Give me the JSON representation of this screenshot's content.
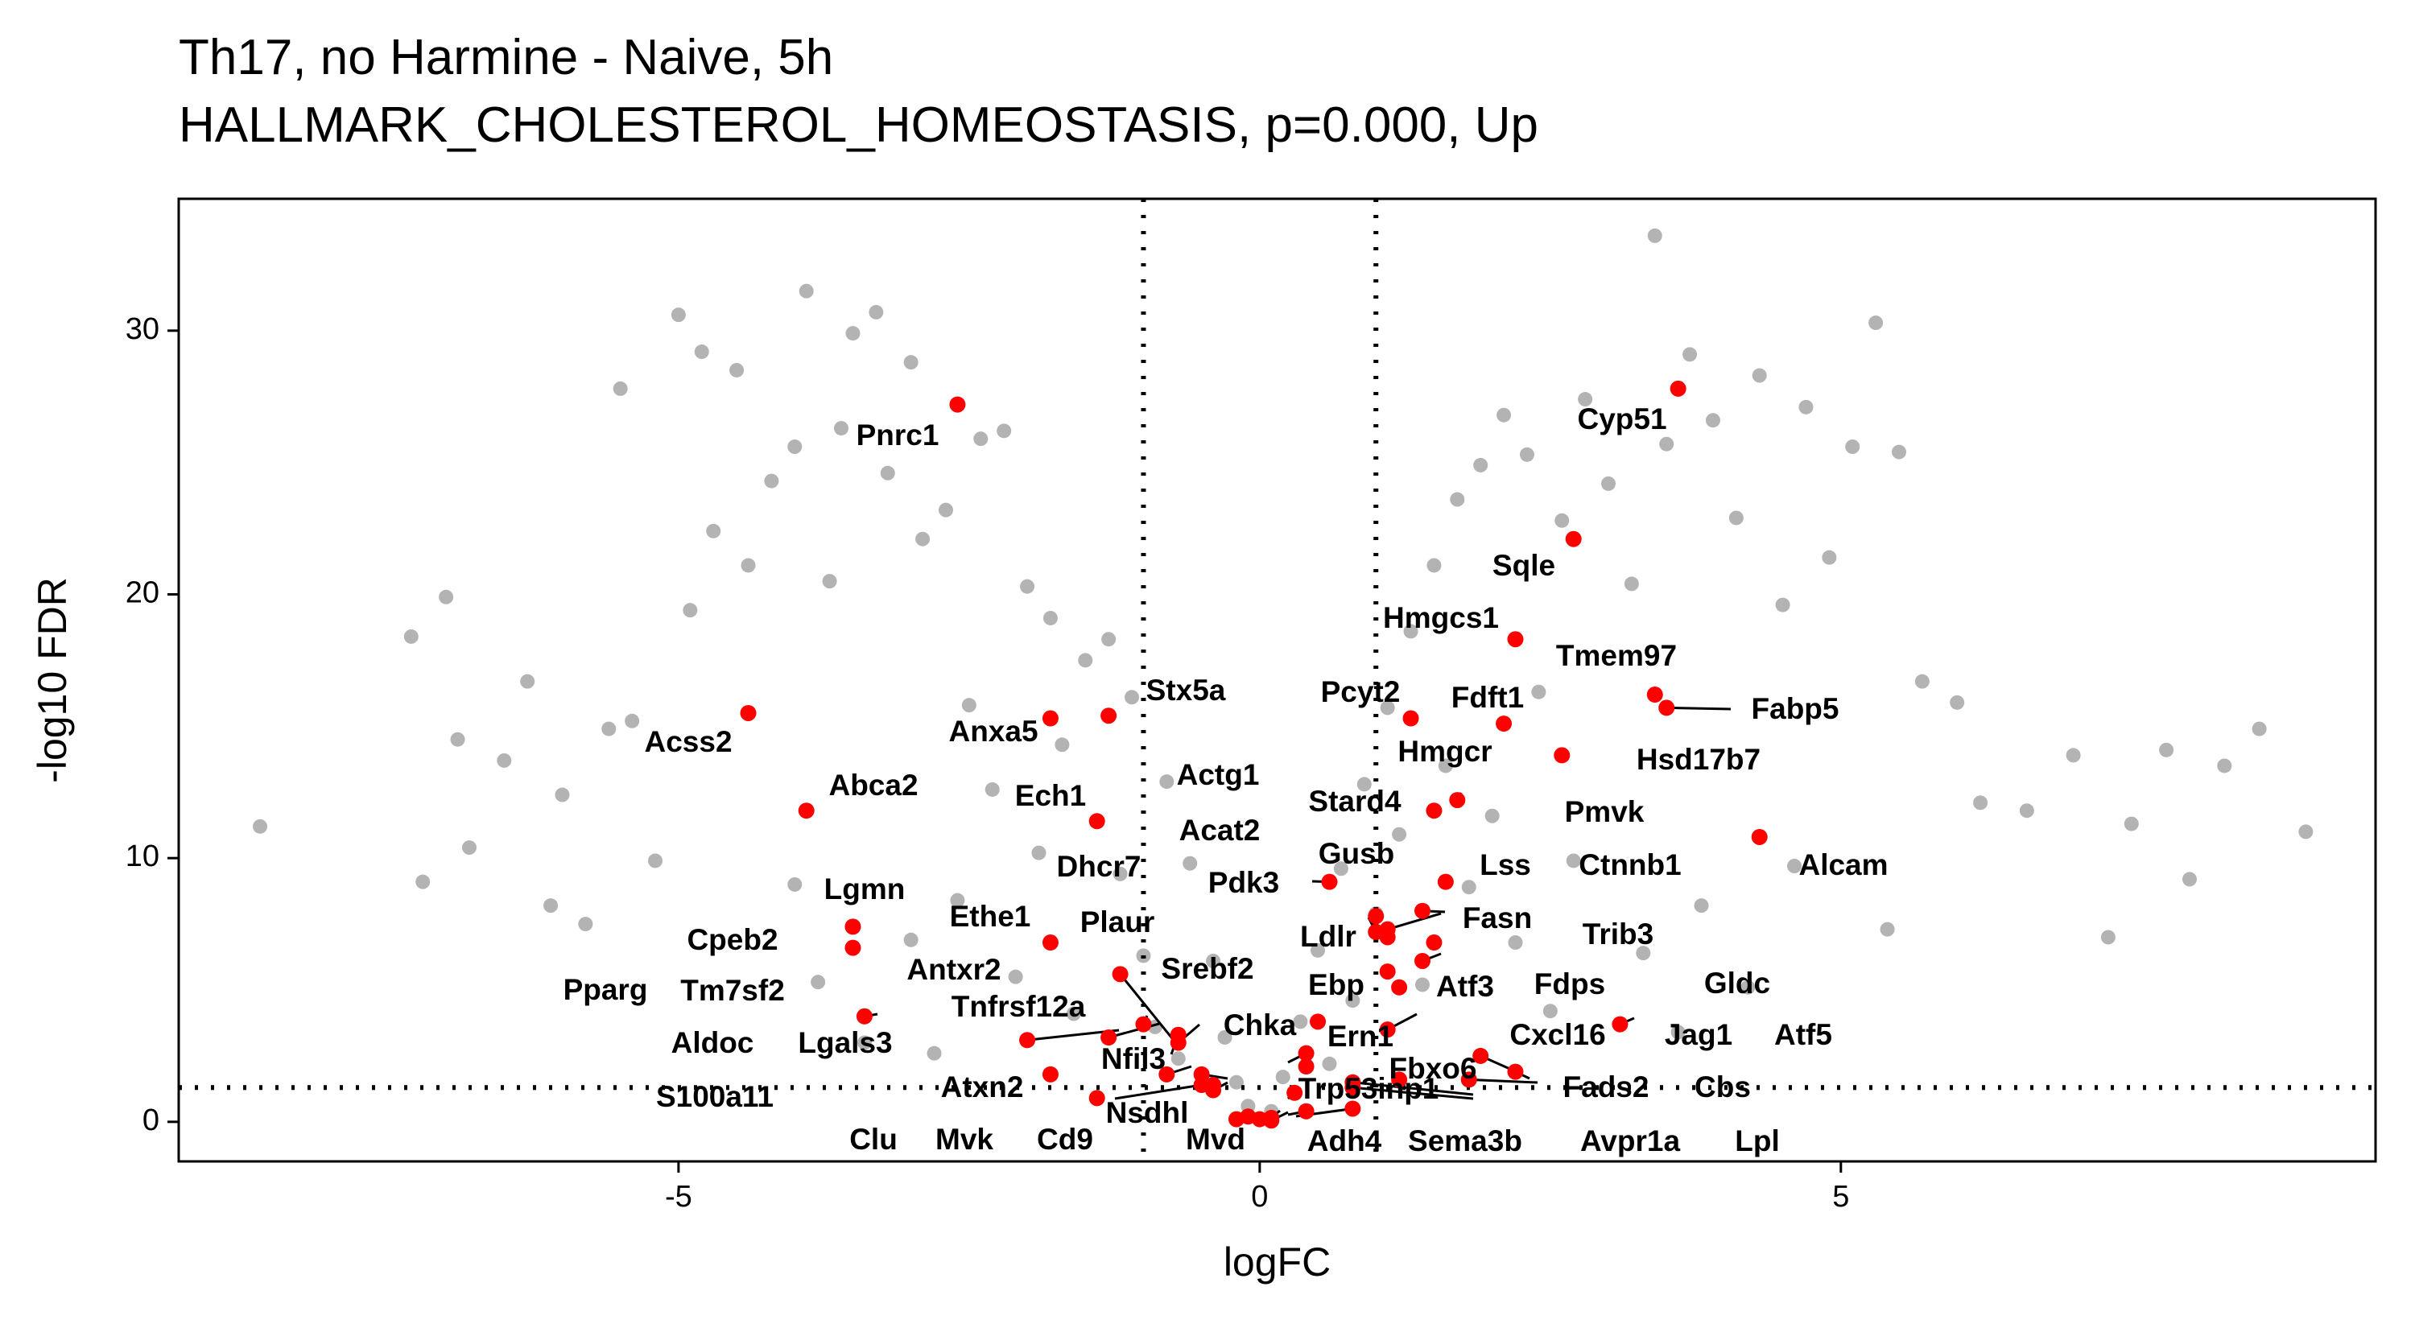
{
  "chart_data": {
    "type": "scatter",
    "title": "Th17, no Harmine - Naive, 5h",
    "subtitle": "HALLMARK_CHOLESTEROL_HOMEOSTASIS, p=0.000, Up",
    "xlabel": "logFC",
    "ylabel": "-log10 FDR",
    "xlim": [
      -9.3,
      9.6
    ],
    "ylim": [
      -1.5,
      35
    ],
    "x_ticks": [
      -5,
      0,
      5
    ],
    "y_ticks": [
      0,
      10,
      20,
      30
    ],
    "grid": false,
    "thresholds": {
      "logFC": [
        -1,
        1
      ],
      "neg_log10_fdr": 1.3
    },
    "background_color": "#b3b3b3",
    "highlight_color": "#ff0000",
    "background_points": [
      [
        -8.6,
        11.2
      ],
      [
        -7.3,
        18.4
      ],
      [
        -7.2,
        9.1
      ],
      [
        -7.0,
        19.9
      ],
      [
        -6.9,
        14.5
      ],
      [
        -6.8,
        10.4
      ],
      [
        -6.5,
        13.7
      ],
      [
        -6.3,
        16.7
      ],
      [
        -6.1,
        8.2
      ],
      [
        -6.0,
        12.4
      ],
      [
        -5.8,
        7.5
      ],
      [
        -5.6,
        14.9
      ],
      [
        -5.5,
        27.8
      ],
      [
        -5.4,
        15.2
      ],
      [
        -5.2,
        9.9
      ],
      [
        -5.0,
        30.6
      ],
      [
        -4.9,
        19.4
      ],
      [
        -4.8,
        29.2
      ],
      [
        -4.7,
        22.4
      ],
      [
        -4.5,
        28.5
      ],
      [
        -4.4,
        21.1
      ],
      [
        -4.2,
        24.3
      ],
      [
        -4.0,
        25.6
      ],
      [
        -3.9,
        31.5
      ],
      [
        -3.7,
        20.5
      ],
      [
        -3.6,
        26.3
      ],
      [
        -3.5,
        29.9
      ],
      [
        -3.3,
        30.7
      ],
      [
        -3.2,
        24.6
      ],
      [
        -3.0,
        28.8
      ],
      [
        -2.9,
        22.1
      ],
      [
        -2.7,
        23.2
      ],
      [
        -2.4,
        25.9
      ],
      [
        -2.2,
        26.2
      ],
      [
        -2.0,
        20.3
      ],
      [
        -1.8,
        19.1
      ],
      [
        -1.5,
        17.5
      ],
      [
        -1.3,
        18.3
      ],
      [
        -1.1,
        16.1
      ],
      [
        -0.8,
        12.9
      ],
      [
        -0.6,
        9.8
      ],
      [
        -0.4,
        6.1
      ],
      [
        -0.3,
        3.2
      ],
      [
        -0.2,
        1.5
      ],
      [
        -0.1,
        0.6
      ],
      [
        0.1,
        0.4
      ],
      [
        0.2,
        1.7
      ],
      [
        0.35,
        3.8
      ],
      [
        0.5,
        6.5
      ],
      [
        0.7,
        9.6
      ],
      [
        0.9,
        12.8
      ],
      [
        1.1,
        15.7
      ],
      [
        1.3,
        18.6
      ],
      [
        1.5,
        21.1
      ],
      [
        1.7,
        23.6
      ],
      [
        1.9,
        24.9
      ],
      [
        2.1,
        26.8
      ],
      [
        2.3,
        25.3
      ],
      [
        2.6,
        22.8
      ],
      [
        2.8,
        27.4
      ],
      [
        3.0,
        24.2
      ],
      [
        3.2,
        20.4
      ],
      [
        3.4,
        33.6
      ],
      [
        3.5,
        25.7
      ],
      [
        3.7,
        29.1
      ],
      [
        3.9,
        26.6
      ],
      [
        4.1,
        22.9
      ],
      [
        4.3,
        28.3
      ],
      [
        4.5,
        19.6
      ],
      [
        4.7,
        27.1
      ],
      [
        4.9,
        21.4
      ],
      [
        5.1,
        25.6
      ],
      [
        5.3,
        30.3
      ],
      [
        5.5,
        25.4
      ],
      [
        5.7,
        16.7
      ],
      [
        6.0,
        15.9
      ],
      [
        6.2,
        12.1
      ],
      [
        6.6,
        11.8
      ],
      [
        7.0,
        13.9
      ],
      [
        7.3,
        7.0
      ],
      [
        7.5,
        11.3
      ],
      [
        7.8,
        14.1
      ],
      [
        8.0,
        9.2
      ],
      [
        8.3,
        13.5
      ],
      [
        8.6,
        14.9
      ],
      [
        9.0,
        11.0
      ],
      [
        -2.6,
        8.4
      ],
      [
        -2.3,
        12.6
      ],
      [
        -2.1,
        5.5
      ],
      [
        -1.9,
        10.2
      ],
      [
        -1.7,
        14.3
      ],
      [
        -1.6,
        4.1
      ],
      [
        -1.2,
        9.4
      ],
      [
        -1.0,
        6.3
      ],
      [
        -0.9,
        3.6
      ],
      [
        -0.7,
        2.4
      ],
      [
        0.6,
        2.2
      ],
      [
        0.8,
        4.6
      ],
      [
        1.0,
        7.9
      ],
      [
        1.2,
        10.9
      ],
      [
        1.4,
        5.2
      ],
      [
        1.6,
        13.5
      ],
      [
        1.8,
        8.9
      ],
      [
        2.0,
        11.6
      ],
      [
        2.2,
        6.8
      ],
      [
        2.4,
        16.3
      ],
      [
        2.5,
        4.2
      ],
      [
        2.7,
        9.9
      ],
      [
        -4.0,
        9.0
      ],
      [
        -3.8,
        5.3
      ],
      [
        -3.4,
        3.0
      ],
      [
        -3.0,
        6.9
      ],
      [
        -2.8,
        2.6
      ],
      [
        -2.5,
        15.8
      ],
      [
        3.3,
        6.4
      ],
      [
        3.6,
        3.4
      ],
      [
        3.8,
        8.2
      ],
      [
        4.2,
        5.1
      ],
      [
        4.6,
        9.7
      ],
      [
        5.4,
        7.3
      ]
    ],
    "points": [
      {
        "gene": "Pnrc1",
        "x": -2.6,
        "y": 27.2
      },
      {
        "gene": "Cyp51",
        "x": 3.6,
        "y": 27.8
      },
      {
        "gene": "Sqle",
        "x": 2.7,
        "y": 22.1
      },
      {
        "gene": "Hmgcs1",
        "x": 2.2,
        "y": 18.3
      },
      {
        "gene": "Tmem97",
        "x": 3.4,
        "y": 16.2
      },
      {
        "gene": "Fabp5",
        "x": 3.5,
        "y": 15.7
      },
      {
        "gene": "Pcyt2",
        "x": 1.3,
        "y": 15.3
      },
      {
        "gene": "Fdft1",
        "x": 2.1,
        "y": 15.1
      },
      {
        "gene": "Stx5a",
        "x": -1.3,
        "y": 15.4
      },
      {
        "gene": "Acss2",
        "x": -4.4,
        "y": 15.5
      },
      {
        "gene": "Anxa5",
        "x": -1.8,
        "y": 15.3
      },
      {
        "gene": "Hsd17b7",
        "x": 2.6,
        "y": 13.9
      },
      {
        "gene": "Hmgcr",
        "x": 1.7,
        "y": 12.2
      },
      {
        "gene": "Stard4",
        "x": 1.5,
        "y": 11.8
      },
      {
        "gene": "Abca2",
        "x": -3.9,
        "y": 11.8
      },
      {
        "gene": "Ech1",
        "x": -1.4,
        "y": 11.4
      },
      {
        "gene": "Alcam",
        "x": 4.3,
        "y": 10.8
      },
      {
        "gene": "Pmvk",
        "x": 1.6,
        "y": 9.1
      },
      {
        "gene": "Actg1",
        "x": 0.6,
        "y": 9.1
      },
      {
        "gene": "Gusb",
        "x": 1.0,
        "y": 7.8
      },
      {
        "gene": "Lss",
        "x": 1.4,
        "y": 8.0
      },
      {
        "gene": "Ctnnb1",
        "x": 1.1,
        "y": 7.3
      },
      {
        "gene": "Acat2",
        "x": 1.0,
        "y": 7.2
      },
      {
        "gene": "Pdk3",
        "x": 1.1,
        "y": 7.0
      },
      {
        "gene": "Lgmn",
        "x": -3.5,
        "y": 7.4
      },
      {
        "gene": "Fasn",
        "x": 1.5,
        "y": 6.8
      },
      {
        "gene": "Ethe1",
        "x": -1.8,
        "y": 6.8
      },
      {
        "gene": "Cpeb2",
        "x": -3.5,
        "y": 6.6
      },
      {
        "gene": "Trib3",
        "x": 1.4,
        "y": 6.1
      },
      {
        "gene": "Ldlr",
        "x": 1.1,
        "y": 5.7
      },
      {
        "gene": "Plaur",
        "x": -1.2,
        "y": 5.6
      },
      {
        "gene": "Atf3",
        "x": 1.2,
        "y": 5.1
      },
      {
        "gene": "Dhcr7",
        "x": -0.7,
        "y": 3.3
      },
      {
        "gene": "Ebp",
        "x": 0.5,
        "y": 3.8
      },
      {
        "gene": "Fdps",
        "x": 1.1,
        "y": 3.5
      },
      {
        "gene": "Gldc",
        "x": 3.1,
        "y": 3.7
      },
      {
        "gene": "Pparg",
        "x": -3.4,
        "y": 4.0
      },
      {
        "gene": "Antxr2",
        "x": -1.0,
        "y": 3.7
      },
      {
        "gene": "Tnfrsf12a",
        "x": -1.3,
        "y": 3.2
      },
      {
        "gene": "Srebf2",
        "x": -0.7,
        "y": 3.0
      },
      {
        "gene": "Tm7sf2",
        "x": -2.0,
        "y": 3.1
      },
      {
        "gene": "Chka",
        "x": 0.4,
        "y": 2.6
      },
      {
        "gene": "Cxcl16",
        "x": 1.9,
        "y": 2.5
      },
      {
        "gene": "Ern1",
        "x": 0.4,
        "y": 2.1
      },
      {
        "gene": "Jag1",
        "x": 2.2,
        "y": 1.9
      },
      {
        "gene": "Atf5",
        "x": 1.8,
        "y": 1.6
      },
      {
        "gene": "Aldoc",
        "x": -1.8,
        "y": 1.8
      },
      {
        "gene": "Lgals3",
        "x": -0.8,
        "y": 1.8
      },
      {
        "gene": "Nfil3",
        "x": -0.5,
        "y": 1.8
      },
      {
        "gene": "Fbxo6",
        "x": 1.2,
        "y": 1.6
      },
      {
        "gene": "Fads2",
        "x": 0.8,
        "y": 1.5
      },
      {
        "gene": "Cbs",
        "x": 0.8,
        "y": 1.3
      },
      {
        "gene": "Atxn2",
        "x": -0.4,
        "y": 1.4
      },
      {
        "gene": "Trp53inp1",
        "x": 0.3,
        "y": 1.1
      },
      {
        "gene": "S100a11",
        "x": -0.4,
        "y": 1.2
      },
      {
        "gene": "Nsdhl",
        "x": -1.4,
        "y": 0.9
      },
      {
        "gene": "Clu",
        "x": -0.5,
        "y": 1.4
      },
      {
        "gene": "Mvk",
        "x": -0.1,
        "y": 0.2
      },
      {
        "gene": "Cd9",
        "x": -0.2,
        "y": 0.1
      },
      {
        "gene": "Mvd",
        "x": 0.0,
        "y": 0.1
      },
      {
        "gene": "Adh4",
        "x": 0.4,
        "y": 0.4
      },
      {
        "gene": "Sema3b",
        "x": 0.8,
        "y": 0.5
      },
      {
        "gene": "Avpr1a",
        "x": 0.1,
        "y": 0.15
      },
      {
        "gene": "Lpl",
        "x": 0.1,
        "y": 0.05
      }
    ]
  }
}
